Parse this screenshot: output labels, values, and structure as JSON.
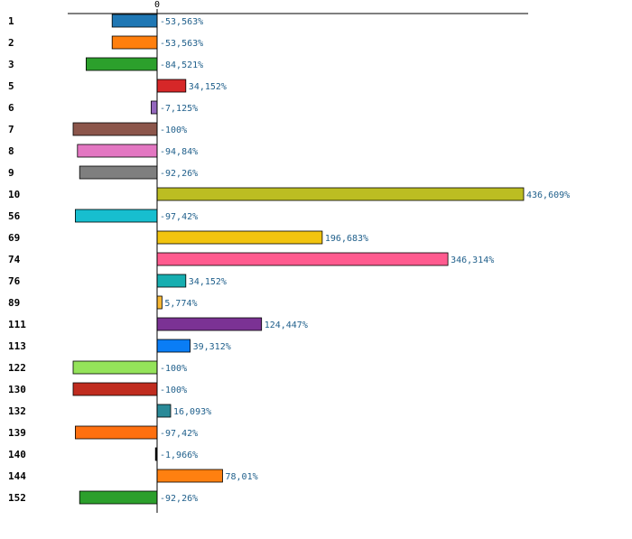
{
  "chart_data": {
    "type": "bar",
    "orientation": "horizontal",
    "title": "",
    "xlabel": "",
    "ylabel": "",
    "zero_tick_label": "0",
    "xlim": [
      -122,
      508
    ],
    "grid": false,
    "categories": [
      "1",
      "2",
      "3",
      "5",
      "6",
      "7",
      "8",
      "9",
      "10",
      "56",
      "69",
      "74",
      "76",
      "89",
      "111",
      "113",
      "122",
      "130",
      "132",
      "139",
      "140",
      "144",
      "152"
    ],
    "values": [
      -53.563,
      -53.563,
      -84.521,
      34.152,
      -7.125,
      -100,
      -94.84,
      -92.26,
      436.609,
      -97.42,
      196.683,
      346.314,
      34.152,
      5.774,
      124.447,
      39.312,
      -100,
      -100,
      16.093,
      -97.42,
      -1.966,
      78.01,
      -92.26
    ],
    "value_labels": [
      "-53,563%",
      "-53,563%",
      "-84,521%",
      "34,152%",
      "-7,125%",
      "-100%",
      "-94,84%",
      "-92,26%",
      "436,609%",
      "-97,42%",
      "196,683%",
      "346,314%",
      "34,152%",
      "5,774%",
      "124,447%",
      "39,312%",
      "-100%",
      "-100%",
      "16,093%",
      "-97,42%",
      "-1,966%",
      "78,01%",
      "-92,26%"
    ],
    "colors": [
      "#1f77b4",
      "#ff7f0e",
      "#2ca02c",
      "#d62728",
      "#9467bd",
      "#8c564b",
      "#e377c2",
      "#7f7f7f",
      "#bcbd22",
      "#17becf",
      "#f2c40f",
      "#ff5b8f",
      "#17aeb0",
      "#f7b733",
      "#7b3294",
      "#0a7df5",
      "#94e35a",
      "#c02c1f",
      "#2a8a98",
      "#ff7010",
      "#0d0d0d",
      "#ff8010",
      "#2c9f2c"
    ]
  }
}
